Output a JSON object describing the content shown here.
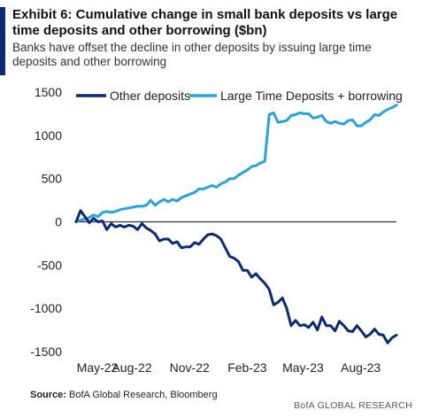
{
  "exhibit_title": "Exhibit 6: Cumulative change in small bank deposits vs large time deposits and other borrowing ($bn)",
  "subtitle": "Banks have offset the decline in other deposits by issuing large time deposits and other borrowing",
  "source_label": "Source:",
  "source_text": "BofA Global Research, Bloomberg",
  "branding": "BofA GLOBAL RESEARCH",
  "colors": {
    "other_deposits": "#0b2a74",
    "large_time": "#2aa3dc",
    "zero_line": "#333333",
    "accent": "#0b2a74"
  },
  "chart_data": {
    "type": "line",
    "title": "",
    "xlabel": "",
    "ylabel": "",
    "ylim": [
      -1500,
      1500
    ],
    "yticks": [
      1500,
      1000,
      500,
      0,
      -500,
      -1000,
      -1500
    ],
    "yticks_text": [
      "1500",
      "1000",
      "500",
      "0",
      "-500",
      "-1000",
      "-1500"
    ],
    "xticks": [
      "May-22",
      "Aug-22",
      "Nov-22",
      "Feb-23",
      "May-23",
      "Aug-23"
    ],
    "grid": false,
    "legend_position": "top",
    "x_start": "2022-05-04",
    "x_end": "2023-09-27",
    "series": [
      {
        "name": "Other deposits",
        "color": "#0b2a74",
        "x": [
          "2022-05-04",
          "2022-05-11",
          "2022-05-18",
          "2022-05-25",
          "2022-06-01",
          "2022-06-08",
          "2022-06-15",
          "2022-06-22",
          "2022-06-29",
          "2022-07-06",
          "2022-07-13",
          "2022-07-20",
          "2022-07-27",
          "2022-08-03",
          "2022-08-10",
          "2022-08-17",
          "2022-08-24",
          "2022-08-31",
          "2022-09-07",
          "2022-09-14",
          "2022-09-21",
          "2022-09-28",
          "2022-10-05",
          "2022-10-12",
          "2022-10-19",
          "2022-10-26",
          "2022-11-02",
          "2022-11-09",
          "2022-11-16",
          "2022-11-23",
          "2022-11-30",
          "2022-12-07",
          "2022-12-14",
          "2022-12-21",
          "2022-12-28",
          "2023-01-04",
          "2023-01-11",
          "2023-01-18",
          "2023-01-25",
          "2023-02-01",
          "2023-02-08",
          "2023-02-15",
          "2023-02-22",
          "2023-03-01",
          "2023-03-08",
          "2023-03-15",
          "2023-03-22",
          "2023-03-29",
          "2023-04-05",
          "2023-04-12",
          "2023-04-19",
          "2023-04-26",
          "2023-05-03",
          "2023-05-10",
          "2023-05-17",
          "2023-05-24",
          "2023-05-31",
          "2023-06-07",
          "2023-06-14",
          "2023-06-21",
          "2023-06-28",
          "2023-07-05",
          "2023-07-12",
          "2023-07-19",
          "2023-07-26",
          "2023-08-02",
          "2023-08-09",
          "2023-08-16",
          "2023-08-23",
          "2023-08-30",
          "2023-09-06",
          "2023-09-13",
          "2023-09-20",
          "2023-09-27"
        ],
        "y": [
          0,
          130,
          60,
          -10,
          40,
          0,
          10,
          -90,
          -20,
          -60,
          -40,
          -60,
          -40,
          -50,
          -90,
          -20,
          -70,
          -100,
          -140,
          -220,
          -200,
          -200,
          -250,
          -230,
          -300,
          -290,
          -290,
          -240,
          -260,
          -200,
          -150,
          -140,
          -160,
          -200,
          -300,
          -400,
          -420,
          -460,
          -560,
          -560,
          -640,
          -600,
          -660,
          -710,
          -780,
          -960,
          -930,
          -880,
          -1000,
          -1200,
          -1140,
          -1200,
          -1190,
          -1220,
          -1160,
          -1250,
          -1100,
          -1200,
          -1200,
          -1260,
          -1150,
          -1200,
          -1260,
          -1270,
          -1200,
          -1260,
          -1330,
          -1300,
          -1240,
          -1300,
          -1310,
          -1400,
          -1340,
          -1310
        ]
      },
      {
        "name": "Large Time Deposits + borrowing",
        "color": "#2aa3dc",
        "x": [
          "2022-05-04",
          "2022-05-11",
          "2022-05-18",
          "2022-05-25",
          "2022-06-01",
          "2022-06-08",
          "2022-06-15",
          "2022-06-22",
          "2022-06-29",
          "2022-07-06",
          "2022-07-13",
          "2022-07-20",
          "2022-07-27",
          "2022-08-03",
          "2022-08-10",
          "2022-08-17",
          "2022-08-24",
          "2022-08-31",
          "2022-09-07",
          "2022-09-14",
          "2022-09-21",
          "2022-09-28",
          "2022-10-05",
          "2022-10-12",
          "2022-10-19",
          "2022-10-26",
          "2022-11-02",
          "2022-11-09",
          "2022-11-16",
          "2022-11-23",
          "2022-11-30",
          "2022-12-07",
          "2022-12-14",
          "2022-12-21",
          "2022-12-28",
          "2023-01-04",
          "2023-01-11",
          "2023-01-18",
          "2023-01-25",
          "2023-02-01",
          "2023-02-08",
          "2023-02-15",
          "2023-02-22",
          "2023-03-01",
          "2023-03-08",
          "2023-03-15",
          "2023-03-22",
          "2023-03-29",
          "2023-04-05",
          "2023-04-12",
          "2023-04-19",
          "2023-04-26",
          "2023-05-03",
          "2023-05-10",
          "2023-05-17",
          "2023-05-24",
          "2023-05-31",
          "2023-06-07",
          "2023-06-14",
          "2023-06-21",
          "2023-06-28",
          "2023-07-05",
          "2023-07-12",
          "2023-07-19",
          "2023-07-26",
          "2023-08-02",
          "2023-08-09",
          "2023-08-16",
          "2023-08-23",
          "2023-08-30",
          "2023-09-06",
          "2023-09-13",
          "2023-09-20",
          "2023-09-27"
        ],
        "y": [
          0,
          20,
          30,
          50,
          80,
          60,
          110,
          120,
          110,
          120,
          140,
          150,
          160,
          170,
          180,
          180,
          190,
          250,
          190,
          230,
          260,
          230,
          260,
          240,
          280,
          300,
          320,
          340,
          380,
          380,
          400,
          420,
          400,
          440,
          460,
          500,
          500,
          540,
          570,
          600,
          640,
          650,
          680,
          700,
          1240,
          1260,
          1150,
          1160,
          1170,
          1230,
          1240,
          1260,
          1250,
          1250,
          1200,
          1210,
          1230,
          1160,
          1140,
          1160,
          1140,
          1130,
          1170,
          1180,
          1110,
          1110,
          1150,
          1180,
          1240,
          1230,
          1270,
          1300,
          1320,
          1350
        ]
      }
    ]
  }
}
